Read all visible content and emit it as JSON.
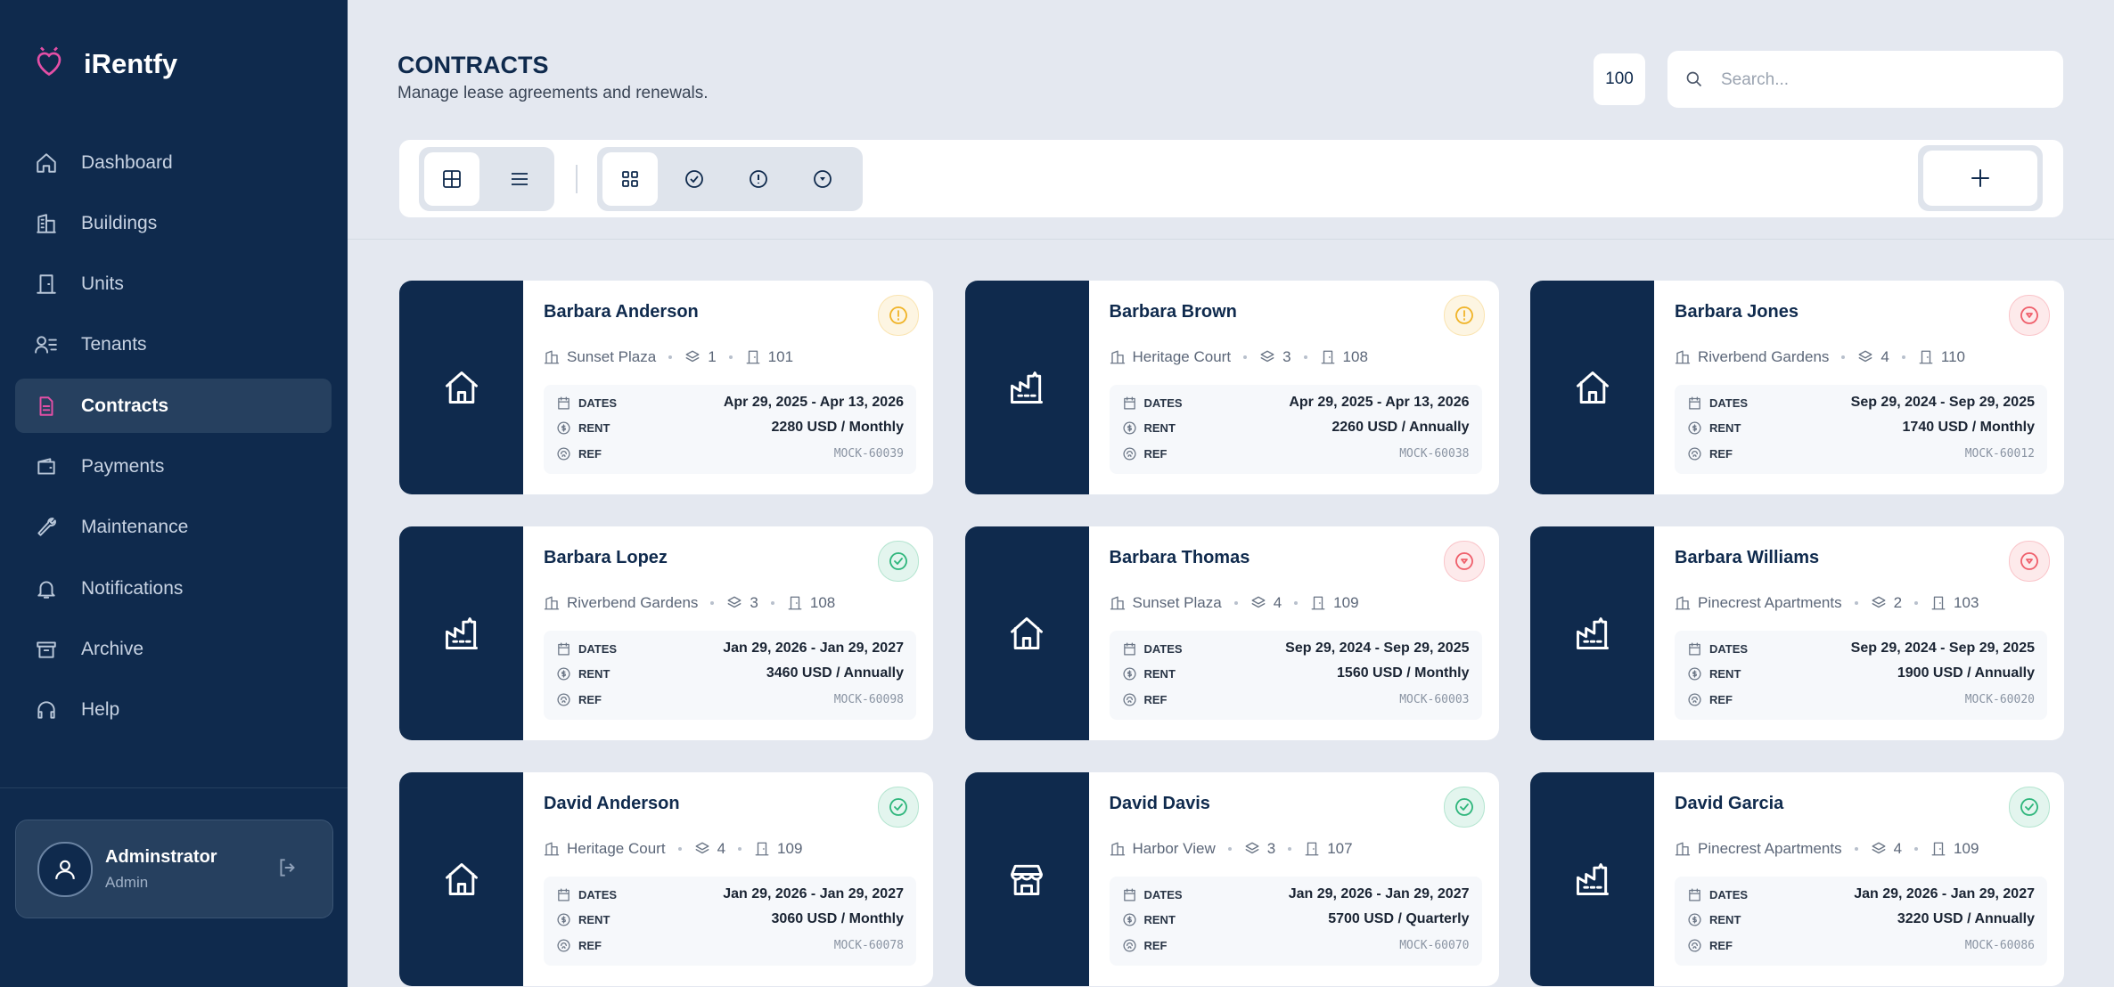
{
  "app": {
    "name": "iRentfy"
  },
  "nav": [
    {
      "label": "Dashboard"
    },
    {
      "label": "Buildings"
    },
    {
      "label": "Units"
    },
    {
      "label": "Tenants"
    },
    {
      "label": "Contracts",
      "active": true
    },
    {
      "label": "Payments"
    },
    {
      "label": "Maintenance"
    },
    {
      "label": "Notifications"
    },
    {
      "label": "Archive"
    },
    {
      "label": "Help"
    }
  ],
  "user": {
    "name": "Adminstrator",
    "role": "Admin"
  },
  "header": {
    "title": "CONTRACTS",
    "subtitle": "Manage lease agreements and renewals.",
    "count": "100",
    "search_placeholder": "Search..."
  },
  "detail_labels": {
    "dates": "DATES",
    "rent": "RENT",
    "ref": "REF"
  },
  "cards": [
    {
      "name": "Barbara Anderson",
      "building": "Sunset Plaza",
      "floor": "1",
      "unit": "101",
      "dates": "Apr 29, 2025 - Apr 13, 2026",
      "rent": "2280 USD / Monthly",
      "ref": "MOCK-60039",
      "icon": "house",
      "status_icon": "alert",
      "status_color": "#f0b429"
    },
    {
      "name": "Barbara Brown",
      "building": "Heritage Court",
      "floor": "3",
      "unit": "108",
      "dates": "Apr 29, 2025 - Apr 13, 2026",
      "rent": "2260 USD / Annually",
      "ref": "MOCK-60038",
      "icon": "factory",
      "status_icon": "alert",
      "status_color": "#f0b429"
    },
    {
      "name": "Barbara Jones",
      "building": "Riverbend Gardens",
      "floor": "4",
      "unit": "110",
      "dates": "Sep 29, 2024 - Sep 29, 2025",
      "rent": "1740 USD / Monthly",
      "ref": "MOCK-60012",
      "icon": "house",
      "status_icon": "timer",
      "status_color": "#ef5f6b"
    },
    {
      "name": "Barbara Lopez",
      "building": "Riverbend Gardens",
      "floor": "3",
      "unit": "108",
      "dates": "Jan 29, 2026 - Jan 29, 2027",
      "rent": "3460 USD / Annually",
      "ref": "MOCK-60098",
      "icon": "factory",
      "status_icon": "check",
      "status_color": "#2fb67c"
    },
    {
      "name": "Barbara Thomas",
      "building": "Sunset Plaza",
      "floor": "4",
      "unit": "109",
      "dates": "Sep 29, 2024 - Sep 29, 2025",
      "rent": "1560 USD / Monthly",
      "ref": "MOCK-60003",
      "icon": "house",
      "status_icon": "timer",
      "status_color": "#ef5f6b"
    },
    {
      "name": "Barbara Williams",
      "building": "Pinecrest Apartments",
      "floor": "2",
      "unit": "103",
      "dates": "Sep 29, 2024 - Sep 29, 2025",
      "rent": "1900 USD / Annually",
      "ref": "MOCK-60020",
      "icon": "factory",
      "status_icon": "timer",
      "status_color": "#ef5f6b"
    },
    {
      "name": "David Anderson",
      "building": "Heritage Court",
      "floor": "4",
      "unit": "109",
      "dates": "Jan 29, 2026 - Jan 29, 2027",
      "rent": "3060 USD / Monthly",
      "ref": "MOCK-60078",
      "icon": "house",
      "status_icon": "check",
      "status_color": "#2fb67c"
    },
    {
      "name": "David Davis",
      "building": "Harbor View",
      "floor": "3",
      "unit": "107",
      "dates": "Jan 29, 2026 - Jan 29, 2027",
      "rent": "5700 USD / Quarterly",
      "ref": "MOCK-60070",
      "icon": "store",
      "status_icon": "check",
      "status_color": "#2fb67c"
    },
    {
      "name": "David Garcia",
      "building": "Pinecrest Apartments",
      "floor": "4",
      "unit": "109",
      "dates": "Jan 29, 2026 - Jan 29, 2027",
      "rent": "3220 USD / Annually",
      "ref": "MOCK-60086",
      "icon": "factory",
      "status_icon": "check",
      "status_color": "#2fb67c"
    }
  ]
}
